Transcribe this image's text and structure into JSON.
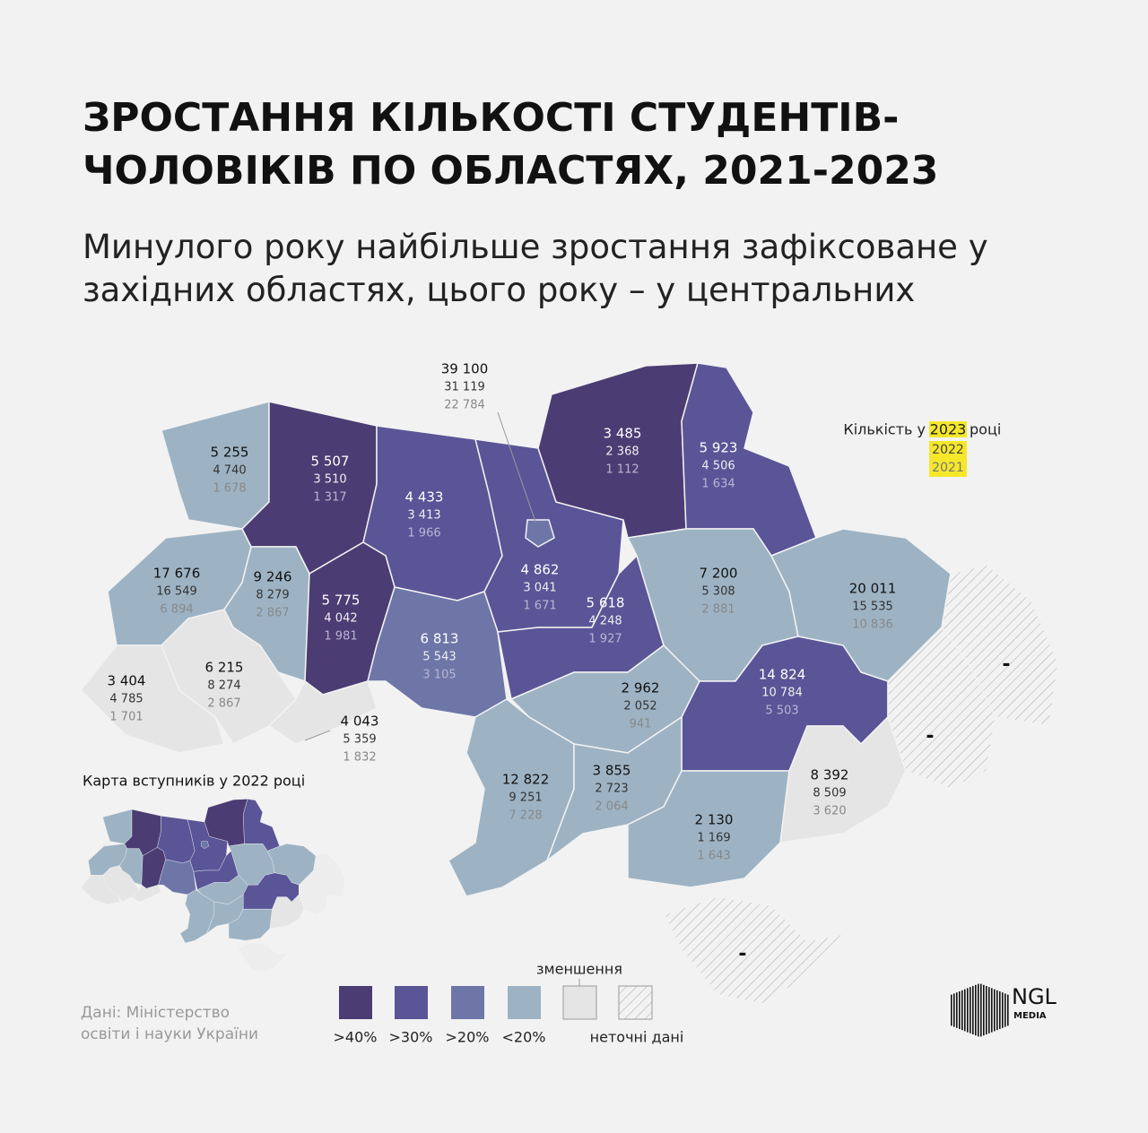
{
  "header": {
    "title_line1": "ЗРОСТАННЯ КІЛЬКОСТІ СТУДЕНТІВ-",
    "title_line2": "ЧОЛОВІКІВ ПО ОБЛАСТЯХ, 2021-2023",
    "subtitle_line1": "Минулого року найбільше зростання зафіксоване у",
    "subtitle_line2": "західних областях, цього року – у центральних"
  },
  "key": {
    "prefix": "Кількість у",
    "year1": "2023",
    "suffix": "році",
    "year2": "2022",
    "year3": "2021"
  },
  "regions": [
    {
      "y2023": "5 255",
      "y2022": "4 740",
      "y2021": "1 678"
    },
    {
      "y2023": "5 507",
      "y2022": "3 510",
      "y2021": "1 317"
    },
    {
      "y2023": "4 433",
      "y2022": "3 413",
      "y2021": "1 966"
    },
    {
      "y2023": "39 100",
      "y2022": "31 119",
      "y2021": "22 784"
    },
    {
      "y2023": "3 485",
      "y2022": "2 368",
      "y2021": "1 112"
    },
    {
      "y2023": "5 923",
      "y2022": "4 506",
      "y2021": "1 634"
    },
    {
      "y2023": "17 676",
      "y2022": "16 549",
      "y2021": "6 894"
    },
    {
      "y2023": "9 246",
      "y2022": "8 279",
      "y2021": "2 867"
    },
    {
      "y2023": "5 775",
      "y2022": "4 042",
      "y2021": "1 981"
    },
    {
      "y2023": "4 862",
      "y2022": "3 041",
      "y2021": "1 671"
    },
    {
      "y2023": "5 618",
      "y2022": "4 248",
      "y2021": "1 927"
    },
    {
      "y2023": "6 813",
      "y2022": "5 543",
      "y2021": "3 105"
    },
    {
      "y2023": "7 200",
      "y2022": "5 308",
      "y2021": "2 881"
    },
    {
      "y2023": "20 011",
      "y2022": "15 535",
      "y2021": "10 836"
    },
    {
      "y2023": "3 404",
      "y2022": "4 785",
      "y2021": "1 701"
    },
    {
      "y2023": "6 215",
      "y2022": "8 274",
      "y2021": "2 867"
    },
    {
      "y2023": "4 043",
      "y2022": "5 359",
      "y2021": "1 832"
    },
    {
      "y2023": "2 962",
      "y2022": "2 052",
      "y2021": "941"
    },
    {
      "y2023": "14 824",
      "y2022": "10 784",
      "y2021": "5 503"
    },
    {
      "y2023": "12 822",
      "y2022": "9 251",
      "y2021": "7 228"
    },
    {
      "y2023": "3 855",
      "y2022": "2 723",
      "y2021": "2 064"
    },
    {
      "y2023": "2 130",
      "y2022": "1 169",
      "y2021": "1 643"
    },
    {
      "y2023": "8 392",
      "y2022": "8 509",
      "y2021": "3 620"
    }
  ],
  "no_data": [
    "-",
    "-",
    "-"
  ],
  "inset_title": "Карта вступників у 2022 році",
  "legend": {
    "labels": [
      ">40%",
      ">30%",
      ">20%",
      "<20%"
    ],
    "decrease": "зменшення",
    "inexact": "неточні дані"
  },
  "source": {
    "line1": "Дані: Міністерство",
    "line2": "освіти і науки України"
  },
  "logo": {
    "name": "NGL",
    "sub": "MEDIA"
  }
}
